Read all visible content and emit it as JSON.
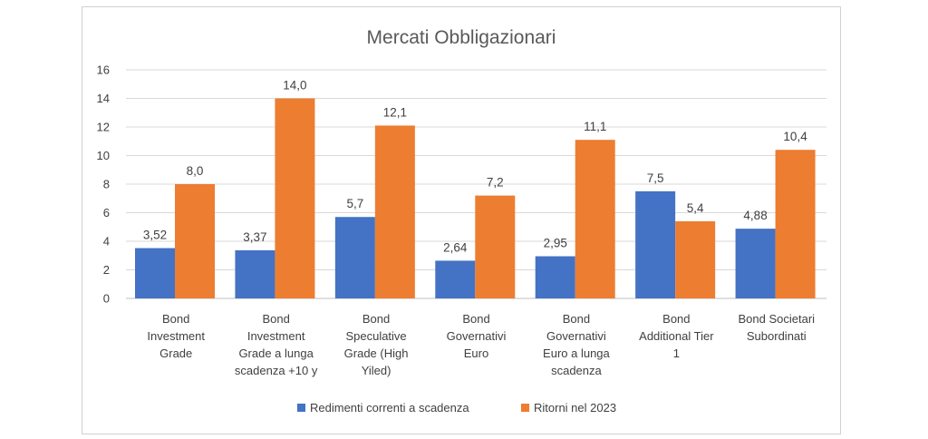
{
  "chart_data": {
    "type": "bar",
    "title": "Mercati Obbligazionari",
    "categories": [
      [
        "Bond",
        "Investment",
        "Grade"
      ],
      [
        "Bond",
        "Investment",
        "Grade a lunga",
        "scadenza +10 y"
      ],
      [
        "Bond",
        "Speculative",
        "Grade (High",
        "Yiled)"
      ],
      [
        "Bond",
        "Governativi",
        "Euro"
      ],
      [
        "Bond",
        "Governativi",
        "Euro a lunga",
        "scadenza"
      ],
      [
        "Bond",
        "Additional Tier",
        "1"
      ],
      [
        "Bond Societari",
        "Subordinati"
      ]
    ],
    "series": [
      {
        "name": "Redimenti correnti a scadenza",
        "color": "#4472c4",
        "values": [
          3.52,
          3.37,
          5.7,
          2.64,
          2.95,
          7.5,
          4.88
        ],
        "labels": [
          "3,52",
          "3,37",
          "5,7",
          "2,64",
          "2,95",
          "7,5",
          "4,88"
        ]
      },
      {
        "name": "Ritorni nel 2023",
        "color": "#ed7d31",
        "values": [
          8.0,
          14.0,
          12.1,
          7.2,
          11.1,
          5.4,
          10.4
        ],
        "labels": [
          "8,0",
          "14,0",
          "12,1",
          "7,2",
          "11,1",
          "5,4",
          "10,4"
        ]
      }
    ],
    "ylim": [
      0,
      16
    ],
    "yticks": [
      0,
      2,
      4,
      6,
      8,
      10,
      12,
      14,
      16
    ],
    "grid": true,
    "legend": "bottom",
    "xlabel": "",
    "ylabel": ""
  }
}
